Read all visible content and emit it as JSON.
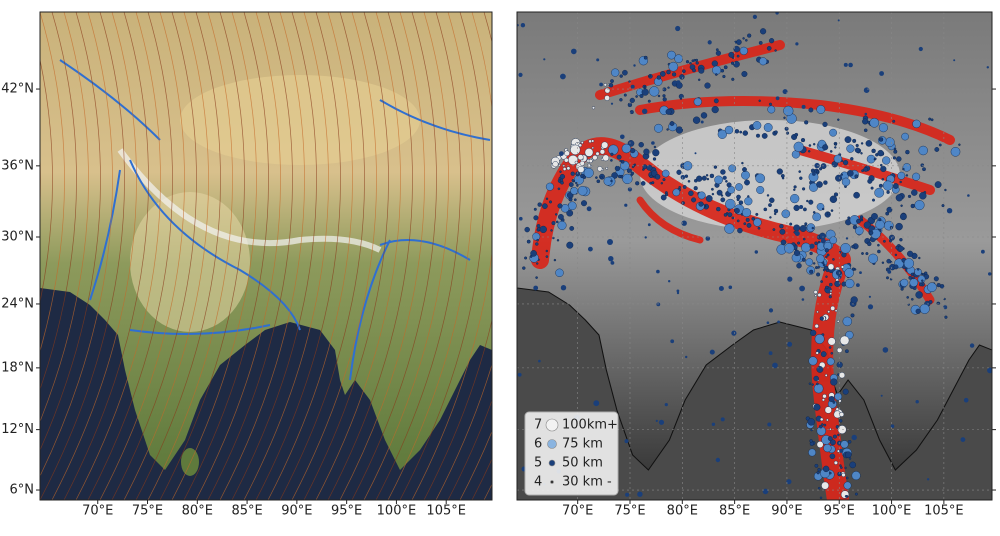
{
  "map": {
    "lon_range": [
      64.2,
      109.6
    ],
    "lat_range": [
      5,
      47.5
    ],
    "lon_ticks": [
      {
        "value": 70,
        "label": "70°E"
      },
      {
        "value": 75,
        "label": "75°E"
      },
      {
        "value": 80,
        "label": "80°E"
      },
      {
        "value": 85,
        "label": "85°E"
      },
      {
        "value": 90,
        "label": "90°E"
      },
      {
        "value": 95,
        "label": "95°E"
      },
      {
        "value": 100,
        "label": "100°E"
      },
      {
        "value": 105,
        "label": "105°E"
      }
    ],
    "lat_ticks": [
      {
        "value": 6,
        "label": "6°N"
      },
      {
        "value": 12,
        "label": "12°N"
      },
      {
        "value": 18,
        "label": "18°N"
      },
      {
        "value": 24,
        "label": "24°N"
      },
      {
        "value": 30,
        "label": "30°N"
      },
      {
        "value": 36,
        "label": "36°N"
      },
      {
        "value": 42,
        "label": "42°N"
      }
    ],
    "legend": [
      {
        "magnitude": 7,
        "label": "100km+"
      },
      {
        "magnitude": 6,
        "label": "75 km"
      },
      {
        "magnitude": 5,
        "label": "50 km"
      },
      {
        "magnitude": 4,
        "label": "30 km -"
      }
    ]
  }
}
